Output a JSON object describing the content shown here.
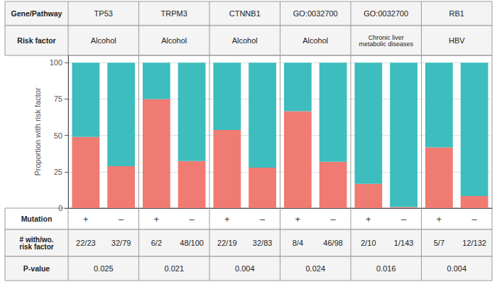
{
  "chart_data": {
    "type": "bar",
    "stacked": true,
    "grid": true,
    "ylabel": "Proportion with risk factor",
    "ylim": [
      0,
      105
    ],
    "yticks": [
      0,
      25,
      50,
      75,
      100
    ],
    "category_label": "Mutation",
    "categories": [
      "+",
      "–",
      "+",
      "–",
      "+",
      "–",
      "+",
      "–",
      "+",
      "–",
      "+",
      "–"
    ],
    "series": [
      {
        "color": "#F07B72",
        "values": [
          48.9,
          28.8,
          75.0,
          32.4,
          53.7,
          27.8,
          66.7,
          31.9,
          16.7,
          0.7,
          41.7,
          8.3
        ]
      },
      {
        "color": "#3DBDBD",
        "values": [
          51.1,
          71.2,
          25.0,
          67.6,
          46.3,
          72.2,
          33.3,
          68.1,
          83.3,
          99.3,
          58.3,
          91.7
        ]
      }
    ],
    "header_rows": [
      {
        "label": "Gene/Pathway",
        "cells": [
          "TP53",
          "TRPM3",
          "CTNNB1",
          "GO:0032700",
          "GO:0032700",
          "RB1"
        ]
      },
      {
        "label": "Risk factor",
        "cells": [
          "Alcohol",
          "Alcohol",
          "Alcohol",
          "Alcohol",
          "Chronic liver\nmetabolic diseases",
          "HBV"
        ]
      }
    ],
    "footer_rows": [
      {
        "label": "# with/wo.\nrisk factor",
        "cells": [
          "22/23",
          "32/79",
          "6/2",
          "48/100",
          "22/19",
          "32/83",
          "8/4",
          "46/98",
          "2/10",
          "1/143",
          "5/7",
          "12/132"
        ]
      },
      {
        "label": "P-value",
        "cells": [
          "0.025",
          "0.021",
          "0.004",
          "0.024",
          "0.016",
          "0.004"
        ]
      }
    ]
  }
}
